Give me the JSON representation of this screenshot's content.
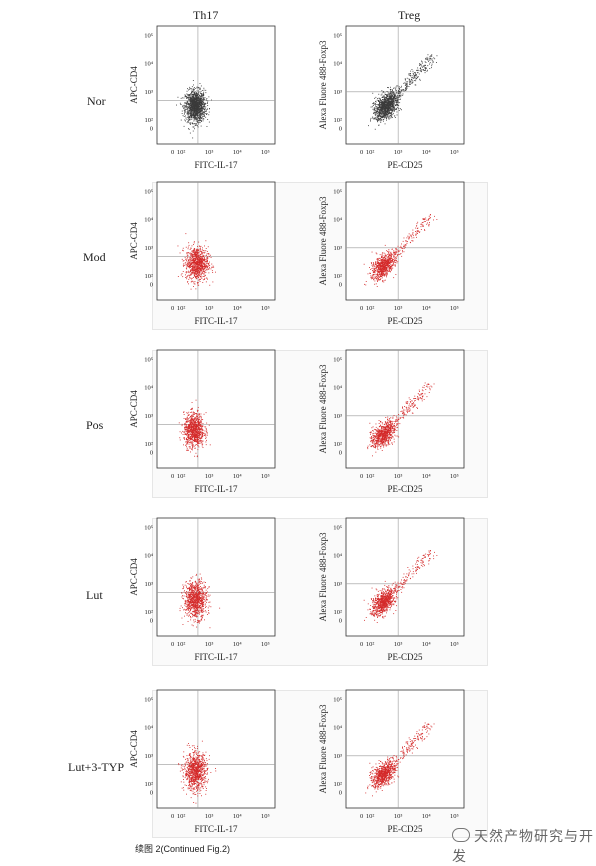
{
  "columns": [
    "Th17",
    "Treg"
  ],
  "rows": [
    "Nor",
    "Mod",
    "Pos",
    "Lut",
    "Lut+3-TYP"
  ],
  "caption": "续图 2(Continued Fig.2)",
  "watermark": "天然产物研究与开发",
  "colors": {
    "normal": "#3a3a3a",
    "treated": "#d42a2a",
    "gate": "#9a9a9a",
    "axis": "#333333"
  },
  "chart_data": [
    {
      "type": "scatter",
      "title": "Th17",
      "xlabel": "FITC-IL-17",
      "ylabel": "APC-CD4",
      "x_ticks": [
        "0",
        "10²",
        "10³",
        "10⁴",
        "10⁵"
      ],
      "y_ticks": [
        "0",
        "10²",
        "10³",
        "10⁴",
        "10⁵"
      ],
      "log_scale": true,
      "quadrant_gate": {
        "x": "10^2.6",
        "y": "10^2.7"
      },
      "series": [
        {
          "name": "Nor",
          "center": [
            2.5,
            2.5
          ],
          "sd": [
            0.18,
            0.28
          ],
          "shape": "round"
        },
        {
          "name": "Mod",
          "center": [
            2.55,
            2.45
          ],
          "sd": [
            0.2,
            0.3
          ],
          "shape": "round"
        },
        {
          "name": "Pos",
          "center": [
            2.45,
            2.5
          ],
          "sd": [
            0.18,
            0.3
          ],
          "shape": "round"
        },
        {
          "name": "Lut",
          "center": [
            2.5,
            2.45
          ],
          "sd": [
            0.2,
            0.33
          ],
          "shape": "round"
        },
        {
          "name": "Lut+3-TYP",
          "center": [
            2.5,
            2.45
          ],
          "sd": [
            0.2,
            0.33
          ],
          "shape": "round"
        }
      ]
    },
    {
      "type": "scatter",
      "title": "Treg",
      "xlabel": "PE-CD25",
      "ylabel": "Alexa Fluore 488-Foxp3",
      "x_ticks": [
        "0",
        "10²",
        "10³",
        "10⁴",
        "10⁵"
      ],
      "y_ticks": [
        "0",
        "10²",
        "10³",
        "10⁴",
        "10⁵"
      ],
      "log_scale": true,
      "quadrant_gate": {
        "x": "10^3",
        "y": "10^3"
      },
      "series": [
        {
          "name": "Nor",
          "center": [
            2.55,
            2.5
          ],
          "sd": [
            0.2,
            0.22
          ],
          "shape": "diagonal"
        },
        {
          "name": "Mod",
          "center": [
            2.45,
            2.35
          ],
          "sd": [
            0.2,
            0.2
          ],
          "shape": "diagonal"
        },
        {
          "name": "Pos",
          "center": [
            2.45,
            2.35
          ],
          "sd": [
            0.2,
            0.2
          ],
          "shape": "diagonal"
        },
        {
          "name": "Lut",
          "center": [
            2.45,
            2.35
          ],
          "sd": [
            0.2,
            0.2
          ],
          "shape": "diagonal"
        },
        {
          "name": "Lut+3-TYP",
          "center": [
            2.45,
            2.35
          ],
          "sd": [
            0.2,
            0.2
          ],
          "shape": "diagonal"
        }
      ]
    }
  ]
}
